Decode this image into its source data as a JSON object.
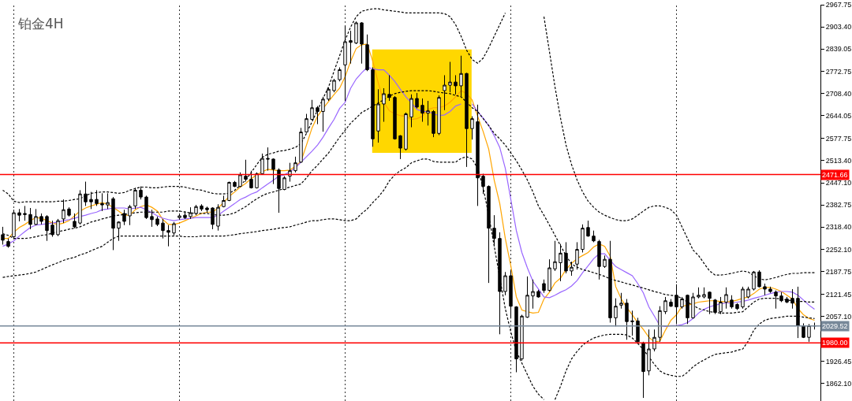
{
  "chart_data": {
    "type": "candlestick",
    "title": "铂金4H",
    "categories": [
      null,
      null,
      null,
      null,
      null,
      null,
      null,
      null,
      null,
      null,
      null,
      null,
      null,
      null,
      null,
      null,
      null,
      null,
      null,
      null,
      null,
      null,
      null,
      null,
      null,
      null,
      null,
      null,
      null,
      null,
      null,
      null,
      null,
      null,
      null,
      null,
      null,
      null,
      null,
      null,
      null,
      null,
      null,
      null,
      null,
      null,
      null,
      null,
      null,
      null,
      null,
      null,
      null,
      null,
      null,
      null,
      null,
      null,
      null,
      null,
      null,
      null,
      null,
      null,
      null,
      null,
      null,
      null,
      null,
      null,
      null,
      null,
      null,
      null,
      null,
      null,
      null,
      null,
      null,
      null,
      null,
      null,
      null,
      null,
      null,
      null,
      null,
      null,
      null,
      null,
      null,
      null,
      null,
      null,
      null,
      null,
      null,
      null,
      null,
      null,
      null,
      null,
      null,
      null,
      null,
      null,
      null,
      null,
      null,
      null,
      null,
      null,
      null,
      null,
      null,
      null,
      null,
      null,
      null,
      null,
      null,
      null,
      null,
      null,
      null,
      null,
      null,
      null,
      null,
      null,
      null,
      null,
      null,
      null,
      null,
      null,
      null,
      null,
      null,
      null,
      null,
      null,
      null,
      null,
      null,
      null,
      null,
      null
    ],
    "ohlc": [
      [
        2296,
        2319,
        2267,
        2280
      ],
      [
        2276,
        2285,
        2258,
        2262
      ],
      [
        2290,
        2369,
        2285,
        2360
      ],
      [
        2360,
        2371,
        2335,
        2353
      ],
      [
        2358,
        2380,
        2337,
        2355
      ],
      [
        2355,
        2374,
        2312,
        2326
      ],
      [
        2326,
        2371,
        2324,
        2349
      ],
      [
        2349,
        2358,
        2326,
        2335
      ],
      [
        2349,
        2353,
        2278,
        2308
      ],
      [
        2324,
        2337,
        2290,
        2296
      ],
      [
        2296,
        2342,
        2292,
        2337
      ],
      [
        2342,
        2399,
        2330,
        2369
      ],
      [
        2371,
        2376,
        2349,
        2353
      ],
      [
        2335,
        2358,
        2315,
        2319
      ],
      [
        2330,
        2426,
        2326,
        2415
      ],
      [
        2415,
        2451,
        2380,
        2392
      ],
      [
        2399,
        2421,
        2371,
        2392
      ],
      [
        2399,
        2426,
        2380,
        2387
      ],
      [
        2387,
        2417,
        2365,
        2383
      ],
      [
        2383,
        2417,
        2371,
        2390
      ],
      [
        2401,
        2406,
        2251,
        2315
      ],
      [
        2315,
        2335,
        2278,
        2333
      ],
      [
        2358,
        2369,
        2324,
        2335
      ],
      [
        2351,
        2383,
        2324,
        2378
      ],
      [
        2380,
        2433,
        2371,
        2426
      ],
      [
        2426,
        2437,
        2399,
        2406
      ],
      [
        2406,
        2410,
        2342,
        2346
      ],
      [
        2349,
        2369,
        2319,
        2340
      ],
      [
        2342,
        2349,
        2321,
        2326
      ],
      [
        2330,
        2342,
        2285,
        2308
      ],
      [
        2308,
        2324,
        2262,
        2303
      ],
      [
        2301,
        2333,
        2294,
        2328
      ],
      [
        2346,
        2358,
        2340,
        2351
      ],
      [
        2353,
        2365,
        2342,
        2346
      ],
      [
        2349,
        2376,
        2342,
        2360
      ],
      [
        2358,
        2383,
        2353,
        2378
      ],
      [
        2380,
        2385,
        2365,
        2371
      ],
      [
        2374,
        2378,
        2360,
        2369
      ],
      [
        2374,
        2376,
        2312,
        2326
      ],
      [
        2321,
        2385,
        2308,
        2376
      ],
      [
        2378,
        2410,
        2376,
        2396
      ],
      [
        2396,
        2451,
        2394,
        2449
      ],
      [
        2449,
        2453,
        2435,
        2437
      ],
      [
        2437,
        2478,
        2435,
        2471
      ],
      [
        2467,
        2515,
        2451,
        2458
      ],
      [
        2458,
        2483,
        2431,
        2433
      ],
      [
        2433,
        2478,
        2431,
        2474
      ],
      [
        2474,
        2533,
        2471,
        2519
      ],
      [
        2519,
        2551,
        2483,
        2517
      ],
      [
        2517,
        2519,
        2444,
        2487
      ],
      [
        2485,
        2490,
        2360,
        2431
      ],
      [
        2428,
        2467,
        2426,
        2462
      ],
      [
        2467,
        2506,
        2451,
        2483
      ],
      [
        2483,
        2524,
        2478,
        2506
      ],
      [
        2508,
        2608,
        2506,
        2596
      ],
      [
        2596,
        2649,
        2594,
        2635
      ],
      [
        2633,
        2690,
        2631,
        2667
      ],
      [
        2667,
        2672,
        2619,
        2656
      ],
      [
        2656,
        2699,
        2597,
        2692
      ],
      [
        2692,
        2726,
        2687,
        2721
      ],
      [
        2717,
        2751,
        2712,
        2747
      ],
      [
        2749,
        2785,
        2744,
        2778
      ],
      [
        2792,
        2906,
        2687,
        2860
      ],
      [
        2863,
        2892,
        2796,
        2858
      ],
      [
        2856,
        2919,
        2853,
        2915
      ],
      [
        2915,
        2917,
        2796,
        2853
      ],
      [
        2851,
        2881,
        2774,
        2778
      ],
      [
        2778,
        2785,
        2553,
        2576
      ],
      [
        2599,
        2721,
        2565,
        2678
      ],
      [
        2678,
        2724,
        2626,
        2708
      ],
      [
        2706,
        2762,
        2687,
        2697
      ],
      [
        2697,
        2701,
        2574,
        2576
      ],
      [
        2585,
        2587,
        2517,
        2549
      ],
      [
        2546,
        2653,
        2542,
        2649
      ],
      [
        2640,
        2706,
        2610,
        2694
      ],
      [
        2694,
        2710,
        2665,
        2669
      ],
      [
        2674,
        2694,
        2626,
        2651
      ],
      [
        2651,
        2687,
        2615,
        2658
      ],
      [
        2656,
        2660,
        2581,
        2592
      ],
      [
        2592,
        2703,
        2587,
        2697
      ],
      [
        2717,
        2762,
        2660,
        2733
      ],
      [
        2733,
        2801,
        2712,
        2742
      ],
      [
        2742,
        2762,
        2706,
        2731
      ],
      [
        2731,
        2819,
        2701,
        2767
      ],
      [
        2767,
        2769,
        2494,
        2606
      ],
      [
        2606,
        2642,
        2574,
        2635
      ],
      [
        2626,
        2676,
        2380,
        2462
      ],
      [
        2467,
        2474,
        2415,
        2437
      ],
      [
        2437,
        2440,
        2155,
        2315
      ],
      [
        2315,
        2353,
        2262,
        2285
      ],
      [
        2285,
        2303,
        2005,
        2130
      ],
      [
        2130,
        2187,
        2119,
        2176
      ],
      [
        2176,
        2190,
        2051,
        2087
      ],
      [
        2085,
        2087,
        1894,
        1933
      ],
      [
        1933,
        2062,
        1928,
        2058
      ],
      [
        2055,
        2174,
        2053,
        2119
      ],
      [
        2117,
        2165,
        2080,
        2130
      ],
      [
        2130,
        2135,
        2112,
        2114
      ],
      [
        2153,
        2165,
        2126,
        2133
      ],
      [
        2133,
        2224,
        2130,
        2199
      ],
      [
        2196,
        2278,
        2190,
        2217
      ],
      [
        2214,
        2269,
        2160,
        2242
      ],
      [
        2242,
        2274,
        2183,
        2190
      ],
      [
        2190,
        2217,
        2176,
        2201
      ],
      [
        2210,
        2274,
        2194,
        2253
      ],
      [
        2253,
        2326,
        2244,
        2315
      ],
      [
        2317,
        2337,
        2290,
        2292
      ],
      [
        2292,
        2308,
        2274,
        2278
      ],
      [
        2276,
        2281,
        2165,
        2203
      ],
      [
        2203,
        2235,
        2199,
        2224
      ],
      [
        2224,
        2278,
        2039,
        2053
      ],
      [
        2053,
        2110,
        2028,
        2087
      ],
      [
        2090,
        2126,
        2080,
        2096
      ],
      [
        2096,
        2108,
        1989,
        2042
      ],
      [
        2044,
        2074,
        2001,
        2042
      ],
      [
        2044,
        2053,
        1978,
        1983
      ],
      [
        1980,
        1983,
        1819,
        1896
      ],
      [
        1898,
        2019,
        1885,
        1962
      ],
      [
        1962,
        2019,
        1955,
        1996
      ],
      [
        1996,
        2087,
        1983,
        2074
      ],
      [
        2071,
        2114,
        2064,
        2103
      ],
      [
        2099,
        2108,
        2085,
        2087
      ],
      [
        2119,
        2151,
        2035,
        2085
      ],
      [
        2085,
        2114,
        2080,
        2108
      ],
      [
        2119,
        2121,
        2035,
        2053
      ],
      [
        2053,
        2126,
        2051,
        2114
      ],
      [
        2114,
        2142,
        2110,
        2119
      ],
      [
        2114,
        2142,
        2110,
        2121
      ],
      [
        2128,
        2130,
        2064,
        2110
      ],
      [
        2105,
        2108,
        2064,
        2069
      ],
      [
        2071,
        2114,
        2064,
        2099
      ],
      [
        2099,
        2142,
        2080,
        2121
      ],
      [
        2105,
        2119,
        2080,
        2085
      ],
      [
        2092,
        2096,
        2076,
        2080
      ],
      [
        2085,
        2144,
        2080,
        2137
      ],
      [
        2114,
        2144,
        2110,
        2137
      ],
      [
        2137,
        2190,
        2133,
        2187
      ],
      [
        2187,
        2192,
        2142,
        2144
      ],
      [
        2144,
        2153,
        2119,
        2137
      ],
      [
        2137,
        2144,
        2126,
        2130
      ],
      [
        2128,
        2133,
        2080,
        2117
      ],
      [
        2117,
        2128,
        2099,
        2103
      ],
      [
        2108,
        2114,
        2096,
        2099
      ],
      [
        2110,
        2137,
        2080,
        2096
      ],
      [
        2110,
        2144,
        1994,
        2030
      ],
      [
        2030,
        2037,
        1994,
        1996
      ],
      [
        1996,
        2035,
        1983,
        2030
      ],
      [
        2030,
        2039,
        2019,
        2029.52
      ]
    ],
    "series": [
      {
        "type": "line",
        "color": "#ffa500",
        "values": [
          2285,
          2285,
          2303,
          2317,
          2326,
          2337,
          2346,
          2344,
          2337,
          2330,
          2326,
          2330,
          2337,
          2351,
          2365,
          2374,
          2380,
          2385,
          2390,
          2385,
          2376,
          2365,
          2353,
          2353,
          2369,
          2378,
          2383,
          2376,
          2365,
          2340,
          2326,
          2326,
          2330,
          2337,
          2344,
          2351,
          2358,
          2362,
          2362,
          2374,
          2390,
          2408,
          2421,
          2435,
          2446,
          2460,
          2471,
          2480,
          2487,
          2485,
          2483,
          2483,
          2485,
          2496,
          2510,
          2558,
          2608,
          2642,
          2665,
          2685,
          2706,
          2724,
          2758,
          2803,
          2840,
          2851,
          2853,
          2803,
          2740,
          2683,
          2658,
          2649,
          2644,
          2642,
          2633,
          2635,
          2642,
          2662,
          2667,
          2667,
          2672,
          2683,
          2699,
          2717,
          2708,
          2690,
          2642,
          2597,
          2546,
          2455,
          2387,
          2285,
          2205,
          2114,
          2076,
          2071,
          2067,
          2069,
          2108,
          2128,
          2155,
          2169,
          2194,
          2212,
          2226,
          2235,
          2244,
          2260,
          2269,
          2262,
          2233,
          2144,
          2108,
          2083,
          2062,
          2039,
          2019,
          1996,
          1983,
          1985,
          2017,
          2046,
          2062,
          2087,
          2090,
          2094,
          2099,
          2101,
          2103,
          2103,
          2101,
          2099,
          2101,
          2105,
          2110,
          2114,
          2124,
          2137,
          2142,
          2142,
          2137,
          2130,
          2119,
          2108,
          2080,
          2062,
          2051,
          2046
        ]
      },
      {
        "type": "line",
        "color": "#9966ff",
        "values": [
          2262,
          2269,
          2278,
          2292,
          2305,
          2317,
          2324,
          2326,
          2328,
          2330,
          2333,
          2337,
          2340,
          2344,
          2349,
          2353,
          2358,
          2362,
          2369,
          2371,
          2374,
          2374,
          2374,
          2371,
          2374,
          2376,
          2369,
          2360,
          2351,
          2344,
          2340,
          2337,
          2340,
          2342,
          2344,
          2346,
          2346,
          2346,
          2346,
          2353,
          2365,
          2376,
          2387,
          2399,
          2406,
          2415,
          2421,
          2433,
          2444,
          2455,
          2467,
          2471,
          2480,
          2492,
          2508,
          2524,
          2540,
          2558,
          2581,
          2608,
          2633,
          2665,
          2683,
          2724,
          2751,
          2769,
          2785,
          2781,
          2778,
          2778,
          2762,
          2744,
          2721,
          2699,
          2681,
          2662,
          2656,
          2656,
          2649,
          2644,
          2646,
          2656,
          2672,
          2678,
          null,
          2678,
          2656,
          2637,
          2615,
          2585,
          2551,
          2490,
          2399,
          2308,
          2244,
          2199,
          2160,
          2137,
          2114,
          2112,
          2119,
          2128,
          2135,
          2146,
          2162,
          2185,
          2205,
          2226,
          2240,
          2240,
          2221,
          2203,
          2194,
          2185,
          2176,
          2153,
          2126,
          2085,
          2058,
          2030,
          2028,
          2030,
          2030,
          2033,
          2039,
          2051,
          2067,
          2078,
          2085,
          2090,
          2094,
          2096,
          2096,
          2099,
          2101,
          2105,
          2110,
          2114,
          2119,
          2124,
          2128,
          2130,
          2130,
          2128,
          2119,
          2105,
          2090,
          2078
        ]
      },
      {
        "type": "line",
        "color": "#000000",
        "line_style": "dashed",
        "values": [
          2426,
          2415,
          2394,
          2390,
          2392,
          2392,
          2392,
          2392,
          2392,
          2392,
          2394,
          2394,
          2396,
          2399,
          2401,
          2410,
          2417,
          2419,
          2421,
          2421,
          2419,
          2417,
          2419,
          2426,
          2431,
          2435,
          2435,
          2433,
          2433,
          2435,
          2437,
          2437,
          2437,
          2435,
          2431,
          2428,
          2426,
          2421,
          2417,
          2415,
          2415,
          2417,
          2426,
          2440,
          2456,
          2478,
          2501,
          2522,
          2531,
          2535,
          2540,
          2542,
          2546,
          2551,
          2562,
          2592,
          2626,
          2660,
          2694,
          2728,
          2774,
          2819,
          2865,
          2903,
          2933,
          2949,
          2953,
          2956,
          2956,
          2953,
          2951,
          2949,
          2947,
          2944,
          2944,
          2944,
          2944,
          2944,
          2944,
          2944,
          2942,
          2933,
          2910,
          2876,
          2835,
          2808,
          2797,
          2812,
          2842,
          2876,
          2910,
          2944,
          null,
          null,
          null,
          null,
          null,
          null,
          2933,
          2831,
          2728,
          2637,
          2558,
          2501,
          2456,
          2421,
          2394,
          2376,
          2362,
          2353,
          2346,
          2340,
          2337,
          2337,
          2342,
          2353,
          2365,
          2376,
          2380,
          2380,
          2376,
          2369,
          2353,
          2319,
          2285,
          2251,
          2235,
          2212,
          2190,
          2178,
          2178,
          2180,
          2183,
          2187,
          2190,
          2187,
          2176,
          2167,
          2164,
          2167,
          2171,
          2176,
          2180,
          2183,
          2183,
          2185,
          2185,
          2185
        ]
      },
      {
        "type": "line",
        "color": "#000000",
        "line_style": "dashed",
        "values": [
          2299,
          2294,
          2285,
          2285,
          2285,
          2287,
          2290,
          2294,
          2296,
          2301,
          2305,
          2308,
          2312,
          2315,
          2319,
          2326,
          2333,
          2337,
          2342,
          2346,
          2351,
          2353,
          2355,
          2358,
          2360,
          2362,
          2362,
          2362,
          2362,
          2362,
          2365,
          2365,
          2365,
          2362,
          2360,
          2358,
          2358,
          2358,
          2355,
          2353,
          2353,
          2355,
          2360,
          2369,
          2378,
          2390,
          2401,
          2410,
          2417,
          2421,
          2426,
          2431,
          2435,
          2440,
          2444,
          2462,
          2483,
          2499,
          2517,
          2535,
          2558,
          2581,
          2601,
          2622,
          2637,
          2653,
          2662,
          2672,
          2681,
          2690,
          2701,
          2708,
          2712,
          2715,
          2717,
          2717,
          2717,
          2717,
          2715,
          2712,
          2710,
          2708,
          2703,
          2699,
          2683,
          2667,
          2656,
          2635,
          2615,
          2592,
          2576,
          2558,
          2535,
          2512,
          2485,
          2456,
          2421,
          2380,
          2353,
          2324,
          2294,
          2264,
          2235,
          2210,
          2201,
          2194,
          2190,
          2185,
          2180,
          2174,
          2167,
          2162,
          2158,
          2153,
          2149,
          2144,
          2140,
          2135,
          2130,
          2126,
          2121,
          2119,
          2117,
          2110,
          2099,
          2090,
          2080,
          2076,
          2071,
          2069,
          2067,
          2067,
          2067,
          2069,
          2071,
          2085,
          2099,
          2108,
          2110,
          2110,
          2110,
          2108,
          2105,
          2103,
          2101,
          2101,
          2099,
          2099
        ]
      },
      {
        "type": "line",
        "color": "#000000",
        "line_style": "dashed",
        "values": [
          2171,
          2174,
          2176,
          2178,
          2180,
          2183,
          2187,
          2194,
          2201,
          2208,
          2214,
          2221,
          2226,
          2230,
          2237,
          2242,
          2249,
          2256,
          2262,
          2274,
          2285,
          2292,
          2292,
          2292,
          2292,
          2292,
          2292,
          2292,
          2292,
          2292,
          2292,
          2292,
          2292,
          2290,
          2290,
          2290,
          2292,
          2292,
          2292,
          2292,
          2292,
          2294,
          2296,
          2299,
          2301,
          2303,
          2305,
          2308,
          2310,
          2312,
          2315,
          2317,
          2319,
          2324,
          2328,
          2333,
          2337,
          2337,
          2340,
          2342,
          2342,
          2340,
          2337,
          2337,
          2342,
          2358,
          2371,
          2390,
          2406,
          2426,
          2453,
          2471,
          2483,
          2492,
          2506,
          2512,
          2517,
          2517,
          2510,
          2508,
          2508,
          2508,
          2508,
          2519,
          2524,
          2517,
          2490,
          2433,
          2353,
          2262,
          2171,
          2080,
          2012,
          1955,
          1921,
          1887,
          1853,
          1830,
          1814,
          null,
          1814,
          1853,
          1898,
          1933,
          1955,
          1973,
          1985,
          1994,
          1999,
          2003,
          2005,
          2005,
          2005,
          2003,
          1994,
          1978,
          1960,
          1939,
          1917,
          1898,
          1889,
          1885,
          1882,
          1882,
          1894,
          1910,
          1921,
          1930,
          1939,
          1946,
          1949,
          1951,
          1953,
          1958,
          1962,
          1985,
          2017,
          2035,
          2046,
          2051,
          2053,
          2055,
          2058,
          2058,
          2058,
          2055,
          2053,
          2051
        ]
      }
    ],
    "ylim": [
      1810,
      2968
    ],
    "yticks": [
      {
        "value": 1862.1,
        "label": "1862.10"
      },
      {
        "value": 1926.45,
        "label": "1926.45"
      },
      {
        "value": 1993.75,
        "label": null
      },
      {
        "value": 2057.1,
        "label": "2057.10"
      },
      {
        "value": 2121.45,
        "label": "2121.45"
      },
      {
        "value": 2187.75,
        "label": "2187.75"
      },
      {
        "value": 2252.1,
        "label": "2252.10"
      },
      {
        "value": 2318.4,
        "label": "2318.40"
      },
      {
        "value": 2382.75,
        "label": "2382.75"
      },
      {
        "value": 2447.1,
        "label": "2447.10"
      },
      {
        "value": 2513.4,
        "label": "2513.40"
      },
      {
        "value": 2577.75,
        "label": "2577.75"
      },
      {
        "value": 2644.05,
        "label": "2644.05"
      },
      {
        "value": 2708.4,
        "label": "2708.40"
      },
      {
        "value": 2772.75,
        "label": "2772.75"
      },
      {
        "value": 2839.05,
        "label": "2839.05"
      },
      {
        "value": 2903.4,
        "label": "2903.40"
      },
      {
        "value": 2967.75,
        "label": "2967.75"
      }
    ],
    "ref_lines": [
      {
        "axis": "y",
        "value": 2471.66,
        "label": "2471.66",
        "color": "#ff0000"
      },
      {
        "axis": "y",
        "value": 1980,
        "label": "1980.00",
        "color": "#ff0000"
      },
      {
        "axis": "y",
        "value": 2029.52,
        "label": "2029.52",
        "color": "#778899"
      }
    ],
    "tick_labels": "y"
  }
}
